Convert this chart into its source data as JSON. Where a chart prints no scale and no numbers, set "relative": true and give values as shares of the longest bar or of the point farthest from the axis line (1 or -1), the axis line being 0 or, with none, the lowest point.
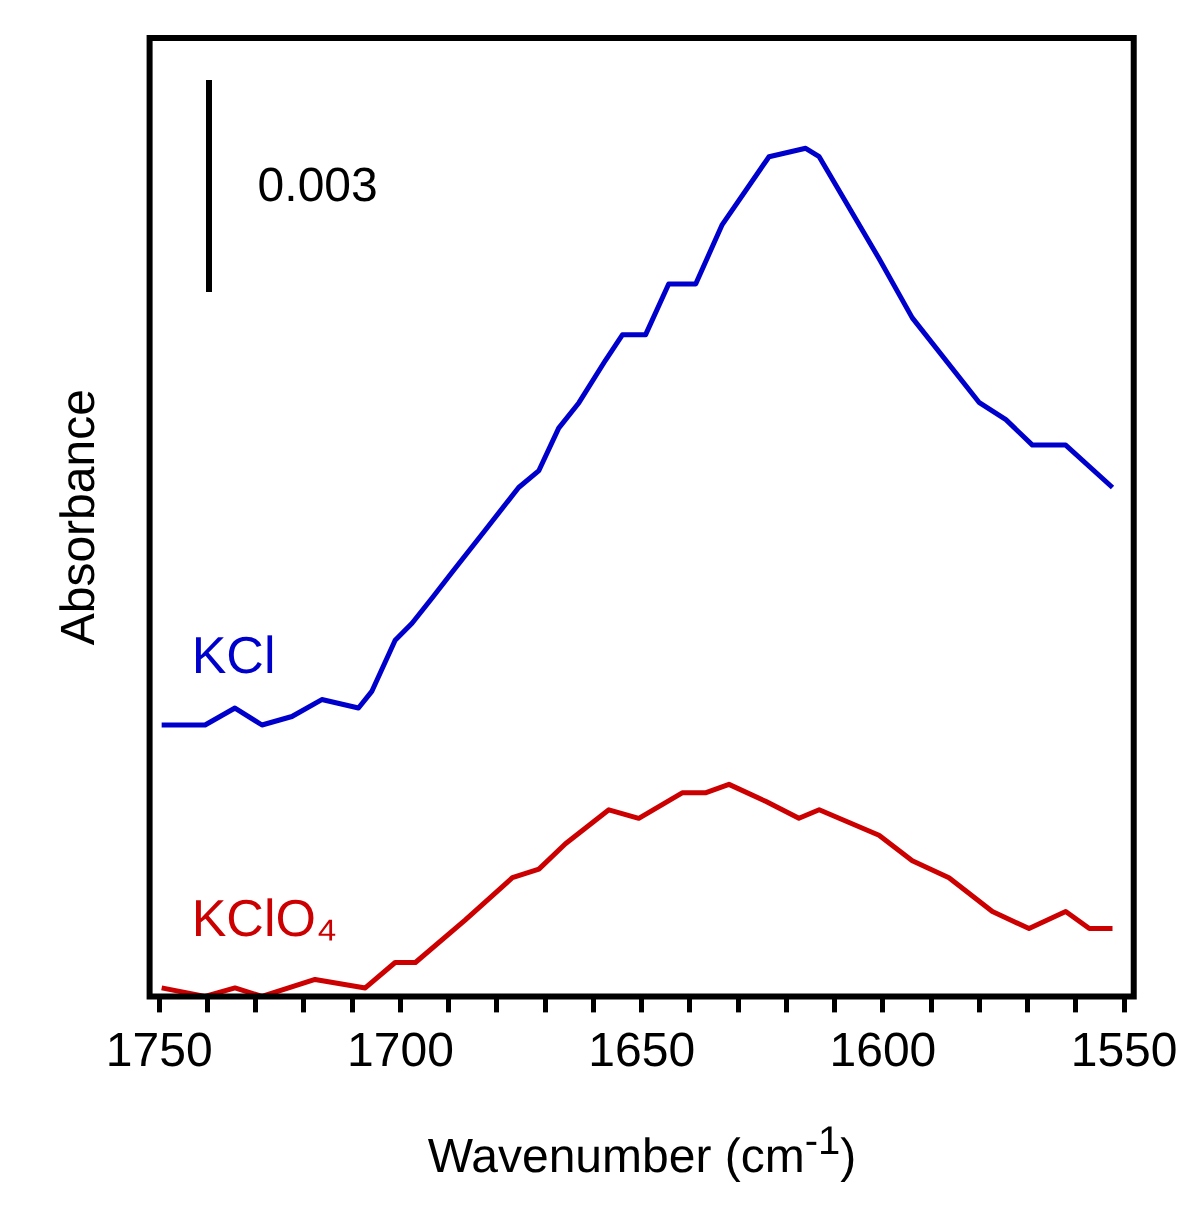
{
  "chart_data": {
    "type": "line",
    "relative": true,
    "xlabel": "Wavenumber (cm$^{-1}$)",
    "ylabel": "Absorbance",
    "xlim": [
      1752,
      1548
    ],
    "xticks": [
      1750,
      {
        "value": 1740,
        "label": null
      },
      {
        "value": 1730,
        "label": null
      },
      {
        "value": 1720,
        "label": null
      },
      {
        "value": 1710,
        "label": null
      },
      1700,
      {
        "value": 1690,
        "label": null
      },
      {
        "value": 1680,
        "label": null
      },
      {
        "value": 1670,
        "label": null
      },
      {
        "value": 1660,
        "label": null
      },
      1650,
      {
        "value": 1640,
        "label": null
      },
      {
        "value": 1630,
        "label": null
      },
      {
        "value": 1620,
        "label": null
      },
      {
        "value": 1610,
        "label": null
      },
      1600,
      {
        "value": 1590,
        "label": null
      },
      {
        "value": 1580,
        "label": null
      },
      {
        "value": 1570,
        "label": null
      },
      {
        "value": 1560,
        "label": null
      },
      1550
    ],
    "grid": false,
    "legend": false,
    "marker": "none",
    "line_style": "solid",
    "annotations": [
      "0.003"
    ],
    "series": [
      {
        "name": "KCl",
        "color": "#0000cc",
        "x": [
          1749.5,
          1746.0,
          1740.5,
          1734.3,
          1728.7,
          1722.5,
          1716.3,
          1708.7,
          1705.9,
          1701.1,
          1697.6,
          1693.4,
          1689.3,
          1682.4,
          1675.5,
          1671.3,
          1667.2,
          1663.0,
          1657.5,
          1654.0,
          1649.2,
          1644.4,
          1638.8,
          1633.3,
          1623.6,
          1616.0,
          1613.2,
          1600.8,
          1593.9,
          1580.0,
          1574.5,
          1569.0,
          1562.1,
          1552.4
        ],
        "values": [
          0.32,
          0.32,
          0.32,
          0.34,
          0.32,
          0.33,
          0.35,
          0.34,
          0.36,
          0.42,
          0.44,
          0.47,
          0.5,
          0.55,
          0.6,
          0.62,
          0.67,
          0.7,
          0.75,
          0.78,
          0.78,
          0.84,
          0.84,
          0.91,
          0.99,
          1.0,
          0.99,
          0.87,
          0.8,
          0.7,
          0.68,
          0.65,
          0.65,
          0.6
        ]
      },
      {
        "name": "KClO₄",
        "color": "#cc0000",
        "x": [
          1749.5,
          1740.5,
          1734.3,
          1728.7,
          1717.7,
          1707.3,
          1701.1,
          1696.9,
          1686.6,
          1676.8,
          1671.3,
          1665.8,
          1656.8,
          1650.6,
          1641.6,
          1636.8,
          1631.9,
          1624.3,
          1617.4,
          1613.2,
          1600.8,
          1593.9,
          1586.3,
          1577.3,
          1569.7,
          1562.1,
          1557.2,
          1552.4
        ],
        "values": [
          0.01,
          0.0,
          0.01,
          0.0,
          0.02,
          0.01,
          0.04,
          0.04,
          0.09,
          0.14,
          0.15,
          0.18,
          0.22,
          0.21,
          0.24,
          0.24,
          0.25,
          0.23,
          0.21,
          0.22,
          0.19,
          0.16,
          0.14,
          0.1,
          0.08,
          0.1,
          0.08,
          0.08
        ]
      }
    ]
  }
}
